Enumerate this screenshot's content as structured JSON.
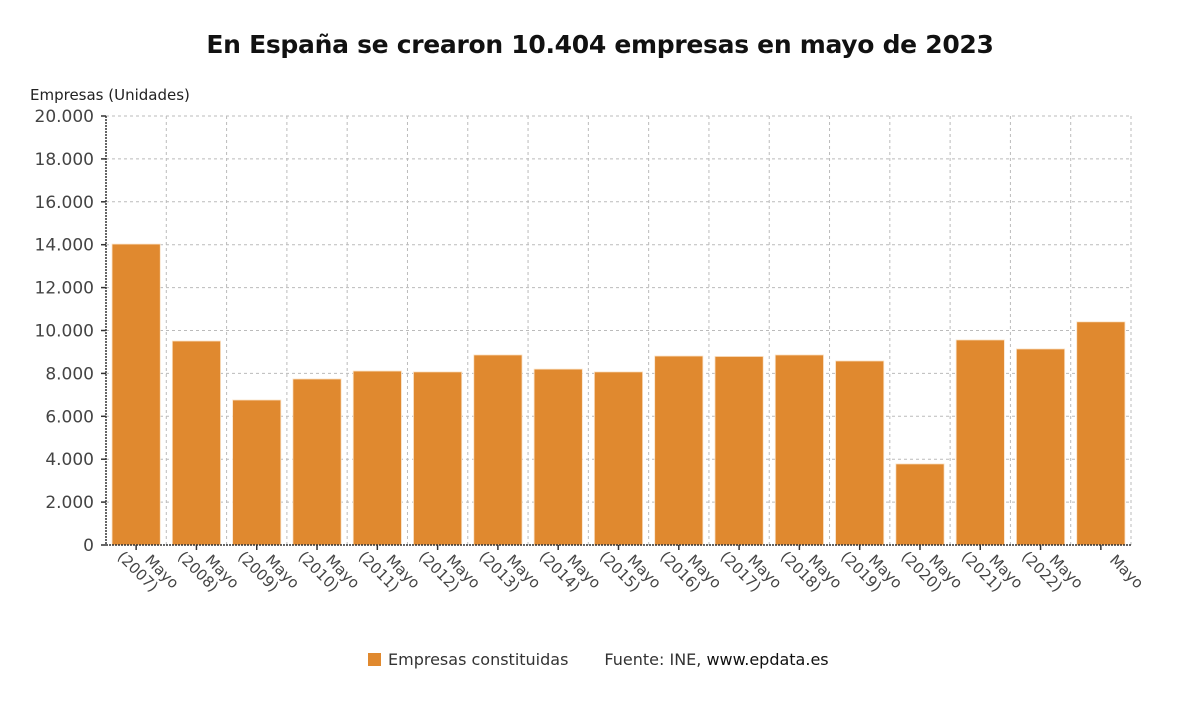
{
  "chart_data": {
    "type": "bar",
    "title": "En España se crearon 10.404 empresas en mayo de 2023",
    "xlabel": "",
    "ylabel": "Empresas (Unidades)",
    "ylim": [
      0,
      20000
    ],
    "yticks": [
      0,
      2000,
      4000,
      6000,
      8000,
      10000,
      12000,
      14000,
      16000,
      18000,
      20000
    ],
    "ytick_labels": [
      "0",
      "2.000",
      "4.000",
      "6.000",
      "8.000",
      "10.000",
      "12.000",
      "14.000",
      "16.000",
      "18.000",
      "20.000"
    ],
    "grid": true,
    "categories": [
      [
        "Mayo",
        "(2007)"
      ],
      [
        "Mayo",
        "(2008)"
      ],
      [
        "Mayo",
        "(2009)"
      ],
      [
        "Mayo",
        "(2010)"
      ],
      [
        "Mayo",
        "(2011)"
      ],
      [
        "Mayo",
        "(2012)"
      ],
      [
        "Mayo",
        "(2013)"
      ],
      [
        "Mayo",
        "(2014)"
      ],
      [
        "Mayo",
        "(2015)"
      ],
      [
        "Mayo",
        "(2016)"
      ],
      [
        "Mayo",
        "(2017)"
      ],
      [
        "Mayo",
        "(2018)"
      ],
      [
        "Mayo",
        "(2019)"
      ],
      [
        "Mayo",
        "(2020)"
      ],
      [
        "Mayo",
        "(2021)"
      ],
      [
        "Mayo",
        "(2022)"
      ],
      [
        "Mayo"
      ]
    ],
    "series": [
      {
        "name": "Empresas constituidas",
        "color": "#e0892f",
        "values": [
          14030,
          9510,
          6760,
          7740,
          8110,
          8070,
          8860,
          8200,
          8070,
          8810,
          8790,
          8860,
          8580,
          3780,
          9560,
          9140,
          10404
        ]
      }
    ],
    "legend_position": "bottom"
  },
  "legend": {
    "series_label": "Empresas constituidas",
    "source_prefix": "Fuente: INE, ",
    "source_site": "www.epdata.es"
  }
}
